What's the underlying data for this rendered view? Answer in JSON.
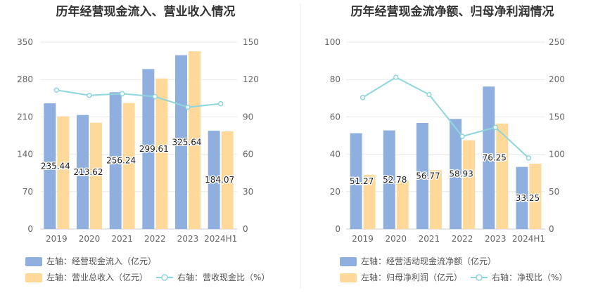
{
  "chart_data": [
    {
      "type": "bar",
      "title": "历年经营现金流入、营业收入情况",
      "categories": [
        "2019",
        "2020",
        "2021",
        "2022",
        "2023",
        "2024H1"
      ],
      "left_axis": {
        "min": 0,
        "max": 350,
        "ticks": [
          0,
          70,
          140,
          210,
          280,
          350
        ]
      },
      "right_axis": {
        "min": 0,
        "max": 150,
        "ticks": [
          0,
          30,
          60,
          90,
          120,
          150
        ]
      },
      "series": [
        {
          "name": "左轴：经营现金流入（亿元）",
          "kind": "bar",
          "axis": "left",
          "color": "#8fb0de",
          "values": [
            235.44,
            213.62,
            256.24,
            299.61,
            325.64,
            184.07
          ],
          "labels": [
            "235.44",
            "213.62",
            "256.24",
            "299.61",
            "325.64",
            "184.07"
          ]
        },
        {
          "name": "左轴：营业总收入（亿元）",
          "kind": "bar",
          "axis": "left",
          "color": "#ffd99a",
          "values": [
            211,
            199,
            236,
            282,
            333,
            183
          ]
        },
        {
          "name": "右轴：营收现金比（%）",
          "kind": "line",
          "axis": "right",
          "color": "#8fd6dc",
          "values": [
            111.5,
            107.3,
            108.6,
            106.3,
            97.8,
            100.6
          ]
        }
      ]
    },
    {
      "type": "bar",
      "title": "历年经营现金流净额、归母净利润情况",
      "categories": [
        "2019",
        "2020",
        "2021",
        "2022",
        "2023",
        "2024H1"
      ],
      "left_axis": {
        "min": 0,
        "max": 100,
        "ticks": [
          0,
          20,
          40,
          60,
          80,
          100
        ]
      },
      "right_axis": {
        "min": 0,
        "max": 250,
        "ticks": [
          0,
          50,
          100,
          150,
          200,
          250
        ]
      },
      "series": [
        {
          "name": "左轴：经营活动现金流净额（亿元）",
          "kind": "bar",
          "axis": "left",
          "color": "#8fb0de",
          "values": [
            51.27,
            52.78,
            56.77,
            58.93,
            76.25,
            33.25
          ],
          "labels": [
            "51.27",
            "52.78",
            "56.77",
            "58.93",
            "76.25",
            "33.25"
          ]
        },
        {
          "name": "左轴：归母净利润（亿元）",
          "kind": "bar",
          "axis": "left",
          "color": "#ffd99a",
          "values": [
            29,
            26,
            31.5,
            47.5,
            56.5,
            35
          ]
        },
        {
          "name": "右轴：净现比（%）",
          "kind": "line",
          "axis": "right",
          "color": "#8fd6dc",
          "values": [
            176,
            203,
            180,
            124,
            136,
            95
          ]
        }
      ]
    }
  ]
}
